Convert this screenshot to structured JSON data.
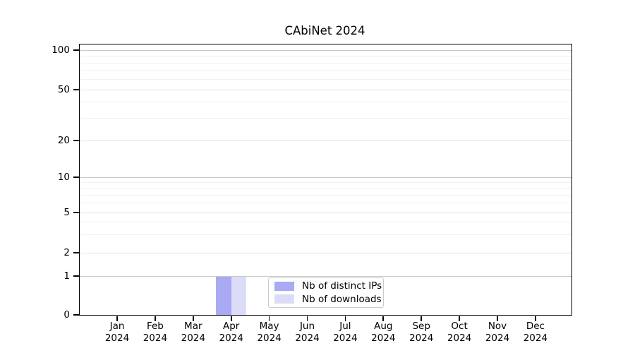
{
  "chart_data": {
    "type": "bar",
    "title": "CAbiNet 2024",
    "x_categories": [
      "Jan",
      "Feb",
      "Mar",
      "Apr",
      "May",
      "Jun",
      "Jul",
      "Aug",
      "Sep",
      "Oct",
      "Nov",
      "Dec"
    ],
    "x_year": "2024",
    "series": [
      {
        "name": "Nb of distinct IPs",
        "color": "#a9a9f4",
        "values": [
          0,
          0,
          0,
          1,
          0,
          0,
          0,
          0,
          0,
          0,
          0,
          0
        ]
      },
      {
        "name": "Nb of downloads",
        "color": "#dcdcf9",
        "values": [
          0,
          0,
          0,
          1,
          0,
          0,
          0,
          0,
          0,
          0,
          0,
          0
        ]
      }
    ],
    "yticks": [
      0,
      1,
      2,
      5,
      10,
      20,
      50,
      100
    ],
    "ylim": [
      0,
      111
    ],
    "yscale": "logarithmic above 1, linear between 0 and 1",
    "grid": {
      "major": [
        1,
        10,
        100
      ],
      "mid": [
        2,
        5,
        20,
        50
      ],
      "minor": [
        3,
        4,
        6,
        7,
        8,
        9,
        30,
        40,
        60,
        70,
        80,
        90
      ]
    },
    "grid_colors": {
      "major": "#c9c9c9",
      "mid": "#e4e4e4",
      "minor": "#f1f1f1"
    },
    "legend_position": "lower center, inside plot",
    "xlabel": "",
    "ylabel": ""
  }
}
